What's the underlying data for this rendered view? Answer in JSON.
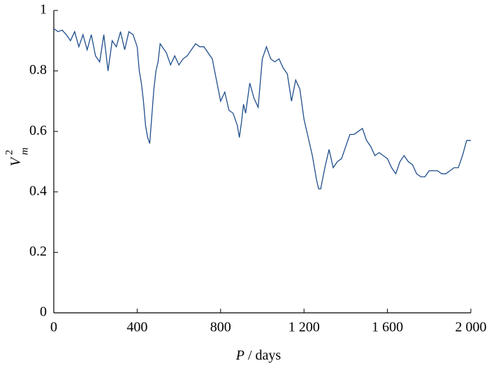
{
  "chart_data": {
    "type": "line",
    "xlabel_var": "P",
    "xlabel_unit": "/ days",
    "ylabel": {
      "base": "V",
      "sub": "m",
      "sup": "2"
    },
    "x": [
      0,
      20,
      40,
      60,
      80,
      100,
      120,
      140,
      160,
      180,
      200,
      220,
      240,
      260,
      280,
      300,
      320,
      340,
      360,
      380,
      400,
      410,
      420,
      430,
      440,
      450,
      460,
      470,
      480,
      490,
      500,
      510,
      520,
      540,
      560,
      580,
      600,
      620,
      640,
      660,
      680,
      700,
      720,
      740,
      760,
      780,
      800,
      820,
      840,
      860,
      880,
      890,
      900,
      910,
      920,
      940,
      960,
      980,
      1000,
      1020,
      1040,
      1060,
      1080,
      1100,
      1120,
      1140,
      1160,
      1180,
      1200,
      1220,
      1240,
      1260,
      1270,
      1280,
      1300,
      1320,
      1340,
      1360,
      1380,
      1400,
      1420,
      1440,
      1460,
      1480,
      1500,
      1520,
      1540,
      1560,
      1580,
      1600,
      1620,
      1640,
      1660,
      1680,
      1700,
      1720,
      1740,
      1760,
      1780,
      1800,
      1820,
      1840,
      1860,
      1880,
      1900,
      1920,
      1940,
      1960,
      1980,
      2000
    ],
    "series": [
      {
        "name": "V_m^2",
        "color": "#1f4e8c",
        "values": [
          0.94,
          0.93,
          0.935,
          0.92,
          0.9,
          0.93,
          0.88,
          0.92,
          0.87,
          0.92,
          0.85,
          0.83,
          0.92,
          0.8,
          0.9,
          0.88,
          0.93,
          0.87,
          0.93,
          0.92,
          0.88,
          0.8,
          0.76,
          0.7,
          0.62,
          0.58,
          0.56,
          0.65,
          0.74,
          0.8,
          0.83,
          0.89,
          0.88,
          0.86,
          0.82,
          0.85,
          0.82,
          0.84,
          0.85,
          0.87,
          0.89,
          0.88,
          0.88,
          0.86,
          0.84,
          0.77,
          0.7,
          0.73,
          0.67,
          0.66,
          0.62,
          0.58,
          0.63,
          0.69,
          0.66,
          0.76,
          0.71,
          0.68,
          0.84,
          0.88,
          0.84,
          0.83,
          0.84,
          0.81,
          0.79,
          0.7,
          0.77,
          0.74,
          0.64,
          0.58,
          0.52,
          0.44,
          0.41,
          0.41,
          0.48,
          0.54,
          0.48,
          0.5,
          0.51,
          0.55,
          0.59,
          0.59,
          0.6,
          0.61,
          0.57,
          0.55,
          0.52,
          0.53,
          0.52,
          0.51,
          0.48,
          0.46,
          0.5,
          0.52,
          0.5,
          0.49,
          0.46,
          0.45,
          0.45,
          0.47,
          0.47,
          0.47,
          0.46,
          0.46,
          0.47,
          0.48,
          0.48,
          0.52,
          0.57,
          0.57
        ]
      }
    ],
    "xlim": [
      0,
      2000
    ],
    "xticks": [
      0,
      400,
      800,
      {
        "value": 1200,
        "label": "1 200"
      },
      {
        "value": 1600,
        "label": "1 600"
      },
      {
        "value": 2000,
        "label": "2 000"
      }
    ],
    "ylim": [
      0,
      1
    ],
    "yticks": [
      0,
      0.2,
      0.4,
      0.6,
      0.8,
      1
    ],
    "grid": false
  }
}
